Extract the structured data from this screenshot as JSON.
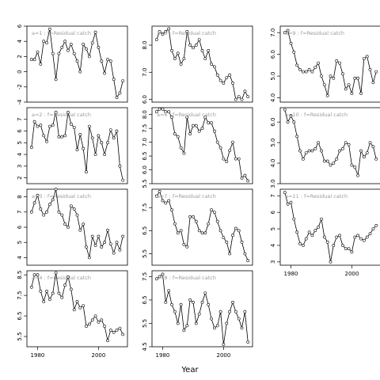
{
  "figure": {
    "xlabel": "Year"
  },
  "chart_data": [
    {
      "type": "line",
      "label": "a=1 : f=Residual catch",
      "ylim": [
        -4,
        6
      ],
      "yticks": [
        "-4",
        "-2",
        "0",
        "2",
        "4",
        "6"
      ],
      "x": [
        1978,
        1979,
        1980,
        1981,
        1982,
        1983,
        1984,
        1985,
        1986,
        1987,
        1988,
        1989,
        1990,
        1991,
        1992,
        1993,
        1994,
        1995,
        1996,
        1997,
        1998,
        1999,
        2000,
        2001,
        2002,
        2003,
        2004,
        2005,
        2006,
        2007,
        2008
      ],
      "y": [
        1.6,
        1.6,
        2.6,
        1.0,
        4.0,
        3.8,
        5.6,
        2.4,
        -1.0,
        2.4,
        3.2,
        4.0,
        2.8,
        3.6,
        2.4,
        1.4,
        0.0,
        3.6,
        3.0,
        2.0,
        3.8,
        5.2,
        3.2,
        1.4,
        -0.2,
        1.6,
        1.4,
        -1.0,
        -3.4,
        -2.8,
        -1.2
      ]
    },
    {
      "type": "line",
      "label": "a=2 : f=Residual catch",
      "ylim": [
        1.5,
        8
      ],
      "yticks": [
        "2",
        "3",
        "4",
        "5",
        "6",
        "7"
      ],
      "x": [
        1978,
        1979,
        1980,
        1981,
        1982,
        1983,
        1984,
        1985,
        1986,
        1987,
        1988,
        1989,
        1990,
        1991,
        1992,
        1993,
        1994,
        1995,
        1996,
        1997,
        1998,
        1999,
        2000,
        2001,
        2002,
        2003,
        2004,
        2005,
        2006,
        2007,
        2008
      ],
      "y": [
        4.6,
        6.8,
        6.4,
        6.5,
        5.6,
        5.1,
        6.4,
        6.5,
        7.6,
        5.5,
        5.5,
        5.6,
        7.6,
        6.6,
        6.3,
        4.4,
        5.7,
        4.5,
        2.5,
        6.4,
        5.4,
        4.0,
        5.6,
        5.0,
        4.0,
        5.0,
        6.1,
        5.4,
        6.0,
        3.0,
        1.8
      ]
    },
    {
      "type": "line",
      "label": "a=3 : f=Residual catch",
      "ylim": [
        3.5,
        8.5
      ],
      "yticks": [
        "4",
        "5",
        "6",
        "7",
        "8"
      ],
      "x": [
        1978,
        1979,
        1980,
        1981,
        1982,
        1983,
        1984,
        1985,
        1986,
        1987,
        1988,
        1989,
        1990,
        1991,
        1992,
        1993,
        1994,
        1995,
        1996,
        1997,
        1998,
        1999,
        2000,
        2001,
        2002,
        2003,
        2004,
        2005,
        2006,
        2007,
        2008
      ],
      "y": [
        7.0,
        7.6,
        8.1,
        7.2,
        6.8,
        7.0,
        7.5,
        7.8,
        8.5,
        7.0,
        6.8,
        6.2,
        6.0,
        7.4,
        7.2,
        6.8,
        5.8,
        6.2,
        4.7,
        4.0,
        5.4,
        4.8,
        5.4,
        4.7,
        5.0,
        5.8,
        4.9,
        4.3,
        5.0,
        4.5,
        5.4
      ]
    },
    {
      "type": "line",
      "label": "a=4 : f=Residual catch",
      "ylim": [
        5,
        8.7
      ],
      "yticks": [
        "5.5",
        "6.5",
        "7.5",
        "8.5"
      ],
      "x": [
        1978,
        1979,
        1980,
        1981,
        1982,
        1983,
        1984,
        1985,
        1986,
        1987,
        1988,
        1989,
        1990,
        1991,
        1992,
        1993,
        1994,
        1995,
        1996,
        1997,
        1998,
        1999,
        2000,
        2001,
        2002,
        2003,
        2004,
        2005,
        2006,
        2007,
        2008
      ],
      "y": [
        7.9,
        8.5,
        8.5,
        7.7,
        7.2,
        7.7,
        7.3,
        7.6,
        8.6,
        7.6,
        7.4,
        8.0,
        8.4,
        7.8,
        6.8,
        7.2,
        6.9,
        7.0,
        6.0,
        6.1,
        6.3,
        6.5,
        6.2,
        6.3,
        6.0,
        5.3,
        5.8,
        5.7,
        5.8,
        5.9,
        5.6
      ]
    },
    {
      "type": "line",
      "label": "a=5 : f=Residual catch",
      "ylim": [
        5.9,
        8.7
      ],
      "yticks": [
        "6.0",
        "7.0",
        "8.0"
      ],
      "x": [
        1978,
        1979,
        1980,
        1981,
        1982,
        1983,
        1984,
        1985,
        1986,
        1987,
        1988,
        1989,
        1990,
        1991,
        1992,
        1993,
        1994,
        1995,
        1996,
        1997,
        1998,
        1999,
        2000,
        2001,
        2002,
        2003,
        2004,
        2005,
        2006,
        2007,
        2008
      ],
      "y": [
        8.2,
        8.5,
        8.4,
        8.5,
        8.6,
        7.8,
        7.5,
        7.7,
        7.3,
        7.5,
        8.5,
        8.0,
        7.9,
        8.0,
        8.2,
        7.8,
        7.5,
        7.8,
        7.3,
        7.2,
        6.9,
        6.7,
        6.6,
        6.8,
        6.9,
        6.6,
        6.0,
        6.1,
        6.0,
        6.3,
        6.1
      ]
    },
    {
      "type": "line",
      "label": "a=6 : f=Residual catch",
      "ylim": [
        5.5,
        8.25
      ],
      "yticks": [
        "5.5",
        "6.0",
        "6.5",
        "7.0",
        "7.5",
        "8.0"
      ],
      "x": [
        1978,
        1979,
        1980,
        1981,
        1982,
        1983,
        1984,
        1985,
        1986,
        1987,
        1988,
        1989,
        1990,
        1991,
        1992,
        1993,
        1994,
        1995,
        1996,
        1997,
        1998,
        1999,
        2000,
        2001,
        2002,
        2003,
        2004,
        2005,
        2006,
        2007,
        2008
      ],
      "y": [
        8.1,
        8.2,
        8.2,
        8.1,
        8.1,
        7.9,
        7.3,
        7.2,
        6.8,
        6.6,
        7.9,
        7.3,
        7.6,
        7.6,
        7.4,
        7.5,
        7.9,
        7.7,
        7.7,
        7.4,
        7.0,
        6.8,
        6.4,
        6.3,
        6.7,
        7.0,
        6.4,
        6.4,
        5.7,
        5.8,
        5.6
      ]
    },
    {
      "type": "line",
      "label": "a=7 : f=Residual catch",
      "ylim": [
        5,
        8.3
      ],
      "yticks": [
        "5.5",
        "6.5",
        "7.5"
      ],
      "x": [
        1978,
        1979,
        1980,
        1981,
        1982,
        1983,
        1984,
        1985,
        1986,
        1987,
        1988,
        1989,
        1990,
        1991,
        1992,
        1993,
        1994,
        1995,
        1996,
        1997,
        1998,
        1999,
        2000,
        2001,
        2002,
        2003,
        2004,
        2005,
        2006,
        2007,
        2008
      ],
      "y": [
        8.0,
        8.2,
        7.8,
        7.7,
        7.8,
        7.4,
        6.8,
        6.4,
        6.5,
        5.9,
        5.8,
        7.1,
        7.1,
        6.9,
        6.5,
        6.4,
        6.4,
        6.8,
        7.4,
        7.3,
        6.9,
        6.5,
        6.2,
        6.0,
        5.5,
        6.3,
        6.6,
        6.5,
        6.0,
        5.5,
        5.2
      ]
    },
    {
      "type": "line",
      "label": "a=8 : f=Residual catch",
      "ylim": [
        4.5,
        7.75
      ],
      "yticks": [
        "4.5",
        "5.5",
        "6.5",
        "7.5"
      ],
      "x": [
        1978,
        1979,
        1980,
        1981,
        1982,
        1983,
        1984,
        1985,
        1986,
        1987,
        1988,
        1989,
        1990,
        1991,
        1992,
        1993,
        1994,
        1995,
        1996,
        1997,
        1998,
        1999,
        2000,
        2001,
        2002,
        2003,
        2004,
        2005,
        2006,
        2007,
        2008
      ],
      "y": [
        7.4,
        7.5,
        7.6,
        6.4,
        6.9,
        6.3,
        6.0,
        5.5,
        6.3,
        5.2,
        5.4,
        6.5,
        6.4,
        5.5,
        5.9,
        6.4,
        6.8,
        6.3,
        5.7,
        5.3,
        5.4,
        6.0,
        4.6,
        5.5,
        6.0,
        6.4,
        6.0,
        5.7,
        5.3,
        6.0,
        4.7
      ]
    },
    {
      "type": "line",
      "label": "a=9 : f=Residual catch",
      "ylim": [
        3.8,
        7.3
      ],
      "yticks": [
        "4.0",
        "5.0",
        "6.0",
        "7.0"
      ],
      "x": [
        1978,
        1979,
        1980,
        1981,
        1982,
        1983,
        1984,
        1985,
        1986,
        1987,
        1988,
        1989,
        1990,
        1991,
        1992,
        1993,
        1994,
        1995,
        1996,
        1997,
        1998,
        1999,
        2000,
        2001,
        2002,
        2003,
        2004,
        2005,
        2006,
        2007,
        2008
      ],
      "y": [
        7.0,
        7.1,
        6.5,
        6.1,
        5.5,
        5.3,
        5.2,
        5.2,
        5.3,
        5.2,
        5.4,
        5.6,
        5.0,
        4.6,
        4.1,
        5.0,
        4.9,
        5.7,
        5.6,
        5.1,
        4.4,
        4.6,
        4.2,
        4.9,
        4.9,
        4.2,
        5.8,
        5.9,
        5.3,
        4.7,
        5.2
      ]
    },
    {
      "type": "line",
      "label": "a=10 : f=Residual catch",
      "ylim": [
        3.0,
        6.7
      ],
      "yticks": [
        "3.0",
        "4.0",
        "5.0",
        "6.0"
      ],
      "x": [
        1978,
        1979,
        1980,
        1981,
        1982,
        1983,
        1984,
        1985,
        1986,
        1987,
        1988,
        1989,
        1990,
        1991,
        1992,
        1993,
        1994,
        1995,
        1996,
        1997,
        1998,
        1999,
        2000,
        2001,
        2002,
        2003,
        2004,
        2005,
        2006,
        2007,
        2008
      ],
      "y": [
        6.6,
        6.0,
        6.3,
        6.0,
        5.3,
        4.6,
        4.2,
        4.5,
        4.6,
        4.6,
        4.7,
        5.0,
        4.6,
        4.1,
        4.1,
        3.9,
        4.0,
        4.2,
        4.6,
        4.7,
        5.0,
        4.9,
        3.9,
        3.8,
        3.4,
        4.6,
        4.3,
        4.5,
        5.0,
        4.8,
        4.2
      ]
    },
    {
      "type": "line",
      "label": "a=11 : f=Residual catch",
      "ylim": [
        2.8,
        7.4
      ],
      "yticks": [
        "3",
        "4",
        "5",
        "6",
        "7"
      ],
      "x": [
        1978,
        1979,
        1980,
        1981,
        1982,
        1983,
        1984,
        1985,
        1986,
        1987,
        1988,
        1989,
        1990,
        1991,
        1992,
        1993,
        1994,
        1995,
        1996,
        1997,
        1998,
        1999,
        2000,
        2001,
        2002,
        2003,
        2004,
        2005,
        2006,
        2007,
        2008
      ],
      "y": [
        7.2,
        6.5,
        6.6,
        5.6,
        4.8,
        4.1,
        4.0,
        4.4,
        4.8,
        4.6,
        4.9,
        5.1,
        5.6,
        4.5,
        4.2,
        3.0,
        4.0,
        4.5,
        4.6,
        4.0,
        3.8,
        3.8,
        3.6,
        4.5,
        4.6,
        4.4,
        4.3,
        4.5,
        4.7,
        5.0,
        5.2
      ]
    }
  ]
}
